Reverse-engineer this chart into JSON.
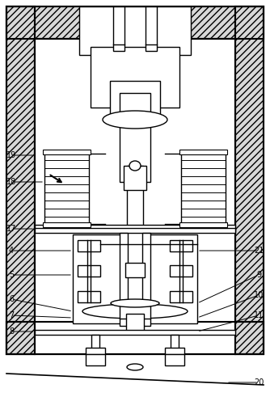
{
  "bg_color": "#ffffff",
  "line_color": "#000000",
  "hatch_color": "#aaaaaa",
  "fig_width": 3.34,
  "fig_height": 4.91,
  "dpi": 100
}
